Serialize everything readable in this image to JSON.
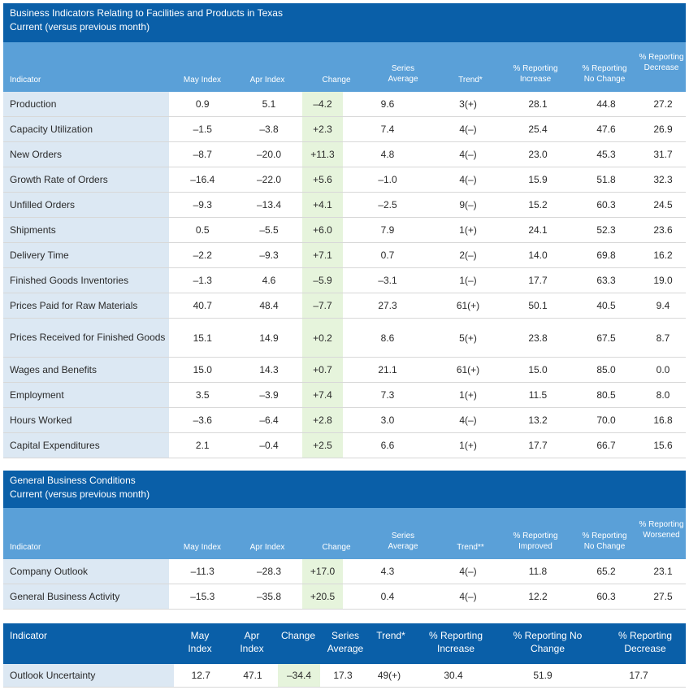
{
  "table1": {
    "title": "Business Indicators Relating to Facilities and Products in Texas",
    "subtitle": "Current (versus previous month)",
    "headers": [
      "Indicator",
      "May Index",
      "Apr Index",
      "Change",
      "Series Average",
      "Trend*",
      "% Reporting Increase",
      "% Reporting No Change",
      "% Reporting Decrease"
    ],
    "rows": [
      [
        "Production",
        "0.9",
        "5.1",
        "–4.2",
        "9.6",
        "3(+)",
        "28.1",
        "44.8",
        "27.2"
      ],
      [
        "Capacity Utilization",
        "–1.5",
        "–3.8",
        "+2.3",
        "7.4",
        "4(–)",
        "25.4",
        "47.6",
        "26.9"
      ],
      [
        "New Orders",
        "–8.7",
        "–20.0",
        "+11.3",
        "4.8",
        "4(–)",
        "23.0",
        "45.3",
        "31.7"
      ],
      [
        "Growth Rate of Orders",
        "–16.4",
        "–22.0",
        "+5.6",
        "–1.0",
        "4(–)",
        "15.9",
        "51.8",
        "32.3"
      ],
      [
        "Unfilled Orders",
        "–9.3",
        "–13.4",
        "+4.1",
        "–2.5",
        "9(–)",
        "15.2",
        "60.3",
        "24.5"
      ],
      [
        "Shipments",
        "0.5",
        "–5.5",
        "+6.0",
        "7.9",
        "1(+)",
        "24.1",
        "52.3",
        "23.6"
      ],
      [
        "Delivery Time",
        "–2.2",
        "–9.3",
        "+7.1",
        "0.7",
        "2(–)",
        "14.0",
        "69.8",
        "16.2"
      ],
      [
        "Finished Goods Inventories",
        "–1.3",
        "4.6",
        "–5.9",
        "–3.1",
        "1(–)",
        "17.7",
        "63.3",
        "19.0"
      ],
      [
        "Prices Paid for Raw Materials",
        "40.7",
        "48.4",
        "–7.7",
        "27.3",
        "61(+)",
        "50.1",
        "40.5",
        "9.4"
      ],
      [
        "Prices Received for Finished Goods",
        "15.1",
        "14.9",
        "+0.2",
        "8.6",
        "5(+)",
        "23.8",
        "67.5",
        "8.7"
      ],
      [
        "Wages and Benefits",
        "15.0",
        "14.3",
        "+0.7",
        "21.1",
        "61(+)",
        "15.0",
        "85.0",
        "0.0"
      ],
      [
        "Employment",
        "3.5",
        "–3.9",
        "+7.4",
        "7.3",
        "1(+)",
        "11.5",
        "80.5",
        "8.0"
      ],
      [
        "Hours Worked",
        "–3.6",
        "–6.4",
        "+2.8",
        "3.0",
        "4(–)",
        "13.2",
        "70.0",
        "16.8"
      ],
      [
        "Capital Expenditures",
        "2.1",
        "–0.4",
        "+2.5",
        "6.6",
        "1(+)",
        "17.7",
        "66.7",
        "15.6"
      ]
    ]
  },
  "table2": {
    "title": "General Business Conditions",
    "subtitle": "Current (versus previous month)",
    "headers": [
      "Indicator",
      "May Index",
      "Apr Index",
      "Change",
      "Series Average",
      "Trend**",
      "% Reporting Improved",
      "% Reporting No Change",
      "% Reporting Worsened"
    ],
    "rows": [
      [
        "Company Outlook",
        "–11.3",
        "–28.3",
        "+17.0",
        "4.3",
        "4(–)",
        "11.8",
        "65.2",
        "23.1"
      ],
      [
        "General Business Activity",
        "–15.3",
        "–35.8",
        "+20.5",
        "0.4",
        "4(–)",
        "12.2",
        "60.3",
        "27.5"
      ]
    ]
  },
  "table3": {
    "headers": [
      "Indicator",
      "May Index",
      "Apr Index",
      "Change",
      "Series Average",
      "Trend*",
      "% Reporting Increase",
      "% Reporting No Change",
      "% Reporting Decrease"
    ],
    "rows": [
      [
        "Outlook Uncertainty",
        "12.7",
        "47.1",
        "–34.4",
        "17.3",
        "49(+)",
        "30.4",
        "51.9",
        "17.7"
      ]
    ]
  },
  "colors": {
    "title_bar": "#0a5fa8",
    "header_row": "#5aa0d8",
    "indicator_cell": "#dce8f3",
    "change_cell": "#e6f4dc"
  }
}
